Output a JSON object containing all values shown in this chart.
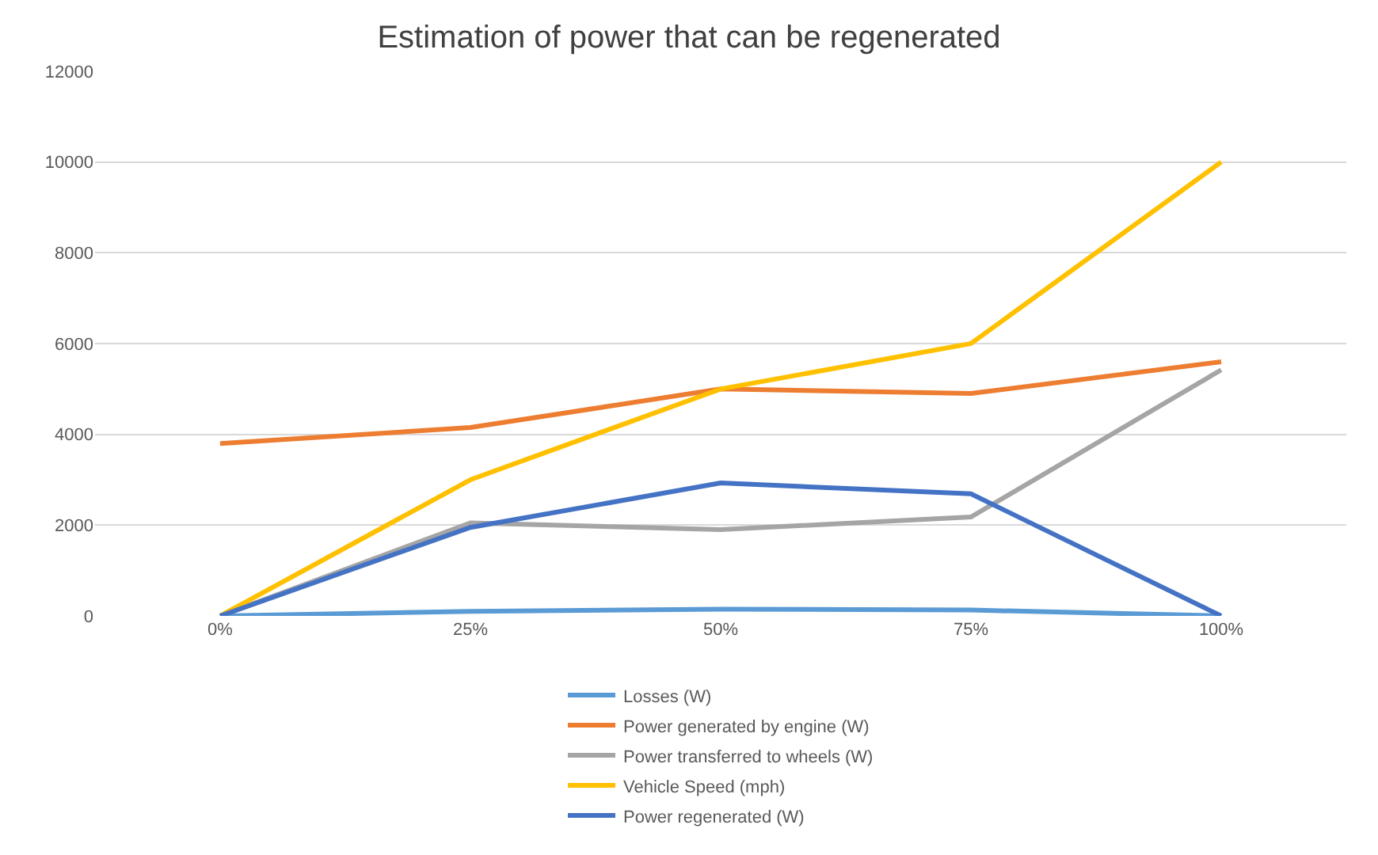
{
  "chart_data": {
    "type": "line",
    "title": "Estimation of power that can be regenerated",
    "categories": [
      "0%",
      "25%",
      "50%",
      "75%",
      "100%"
    ],
    "series": [
      {
        "name": "Losses (W)",
        "color": "#5b9bd5",
        "values": [
          0,
          100,
          150,
          130,
          0
        ]
      },
      {
        "name": "Power generated by engine (W)",
        "color": "#ed7d31",
        "values": [
          3800,
          4150,
          5000,
          4900,
          5600
        ]
      },
      {
        "name": "Power transferred to wheels (W)",
        "color": "#a5a5a5",
        "values": [
          0,
          2050,
          1900,
          2180,
          5420
        ]
      },
      {
        "name": "Vehicle Speed (mph)",
        "color": "#ffc000",
        "values": [
          0,
          3000,
          5000,
          6000,
          10000
        ]
      },
      {
        "name": "Power regenerated (W)",
        "color": "#4472c4",
        "values": [
          0,
          1950,
          2930,
          2690,
          0
        ]
      }
    ],
    "ylim": [
      0,
      12000
    ],
    "yticks": [
      0,
      2000,
      4000,
      6000,
      8000,
      10000,
      12000
    ],
    "grid": "y",
    "legend": "bottom",
    "marker": "none",
    "line_style": "solid"
  }
}
